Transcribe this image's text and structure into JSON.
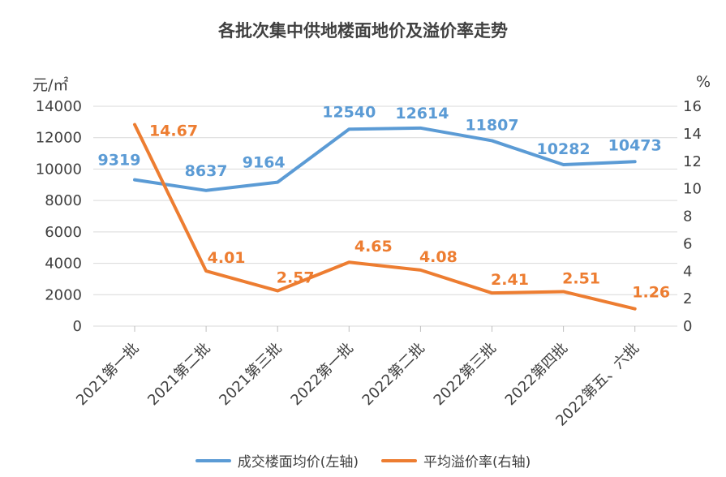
{
  "chart_data": {
    "type": "line",
    "title": "各批次集中供地楼面地价及溢价率走势",
    "left_unit": "元/㎡",
    "right_unit": "%",
    "categories": [
      "2021第一批",
      "2021第二批",
      "2021第三批",
      "2022第一批",
      "2022第二批",
      "2022第三批",
      "2022第四批",
      "2022第五、六批"
    ],
    "y_left_ticks": [
      "0",
      "2000",
      "4000",
      "6000",
      "8000",
      "10000",
      "12000",
      "14000"
    ],
    "y_right_ticks": [
      "0",
      "2",
      "4",
      "6",
      "8",
      "10",
      "12",
      "14",
      "16"
    ],
    "ylim_left": [
      0,
      14000
    ],
    "ylim_right": [
      0,
      16
    ],
    "series": [
      {
        "name": "成交楼面均价(左轴)",
        "axis": "left",
        "color": "#5b9bd5",
        "values": [
          9319,
          8637,
          9164,
          12540,
          12614,
          11807,
          10282,
          10473
        ],
        "labels": [
          "9319",
          "8637",
          "9164",
          "12540",
          "12614",
          "11807",
          "10282",
          "10473"
        ]
      },
      {
        "name": "平均溢价率(右轴)",
        "axis": "right",
        "color": "#ed7d31",
        "values": [
          14.67,
          4.01,
          2.57,
          4.65,
          4.08,
          2.41,
          2.51,
          1.26
        ],
        "labels": [
          "14.67",
          "4.01",
          "2.57",
          "4.65",
          "4.08",
          "2.41",
          "2.51",
          "1.26"
        ]
      }
    ],
    "grid": true,
    "legend_position": "bottom"
  }
}
